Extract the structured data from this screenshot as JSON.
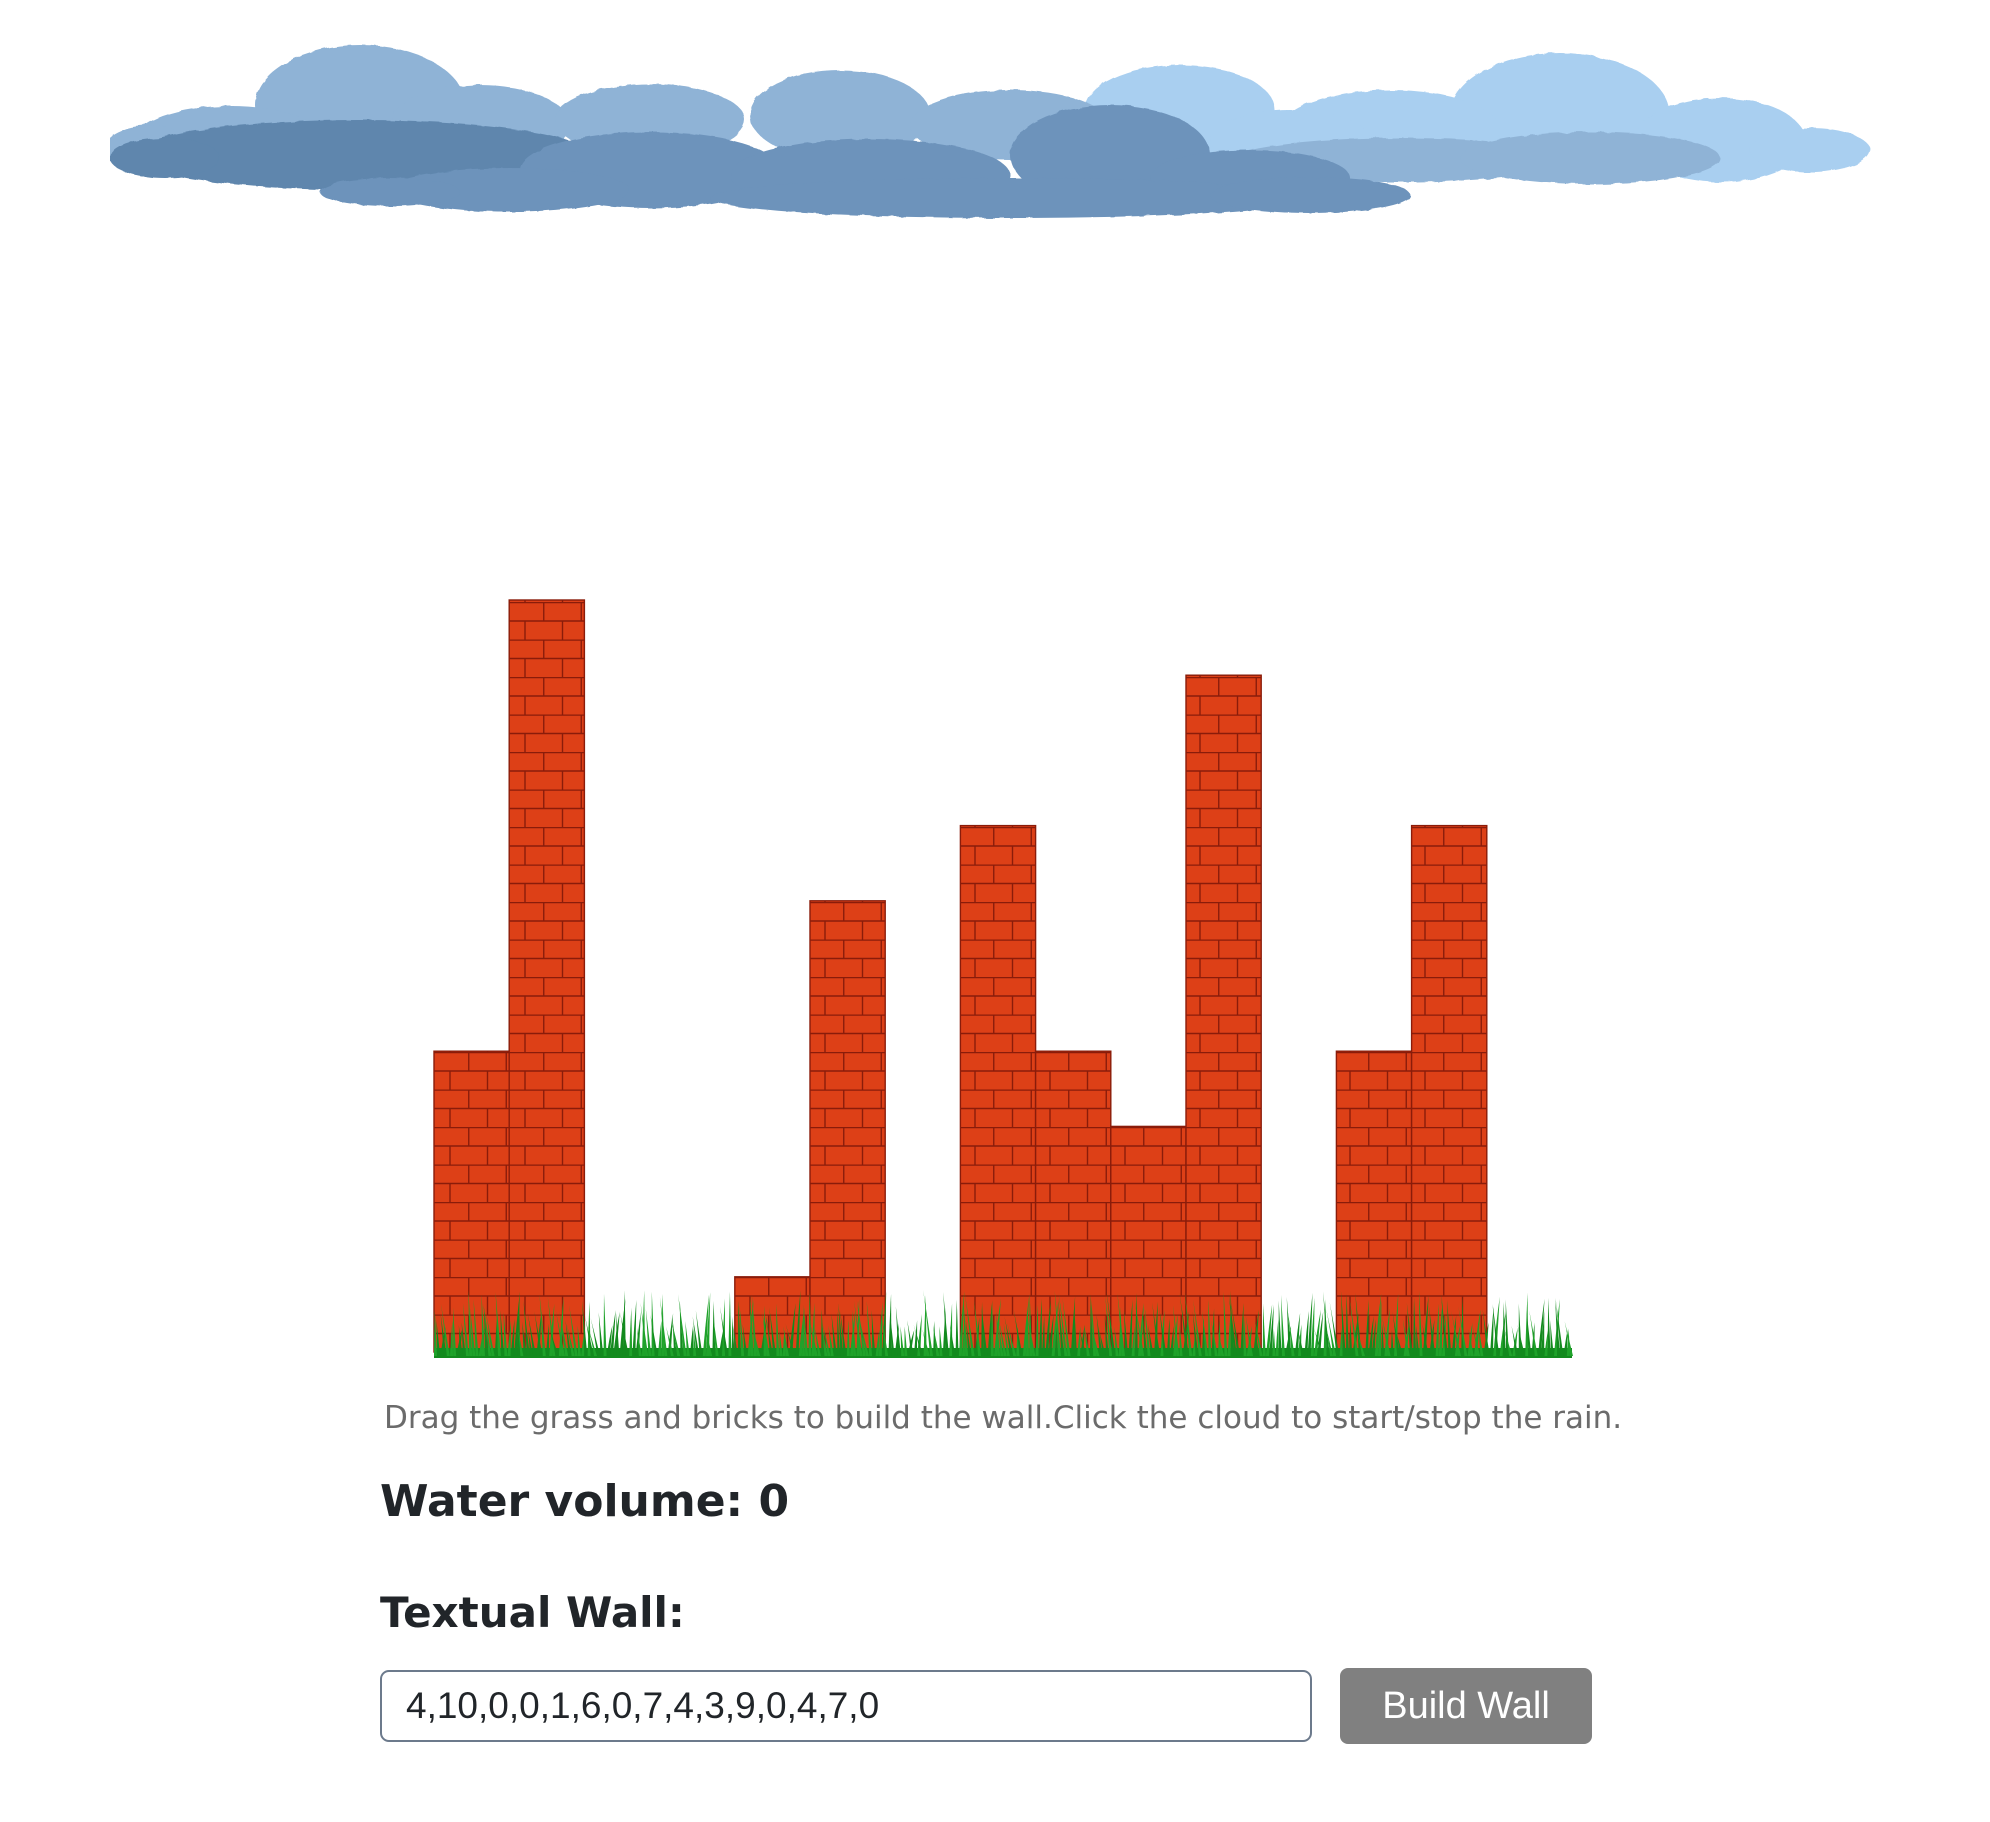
{
  "instructions": "Drag the grass and bricks to build the wall.Click the cloud to start/stop the rain.",
  "water_volume": {
    "label": "Water volume:",
    "value": "0"
  },
  "textual_wall": {
    "heading": "Textual Wall:",
    "input_value": "4,10,0,0,1,6,0,7,4,3,9,0,4,7,0",
    "button_label": "Build Wall"
  },
  "wall": {
    "heights": [
      4,
      10,
      0,
      0,
      1,
      6,
      0,
      7,
      4,
      3,
      9,
      0,
      4,
      7,
      0
    ],
    "brick_color": "#dd4017",
    "mortar_color": "#8a1c0a",
    "grass_color": "#138a1e"
  },
  "cloud": {
    "icon": "rain-cloud-icon"
  }
}
